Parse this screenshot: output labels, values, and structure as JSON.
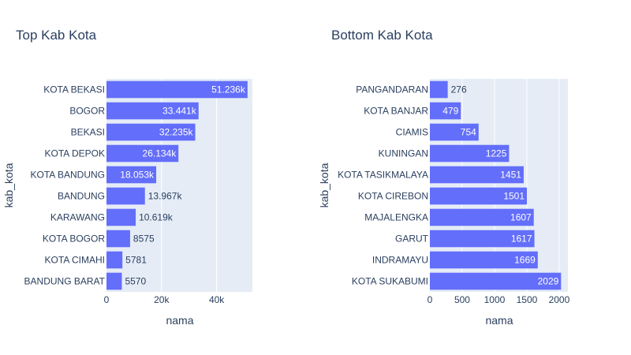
{
  "chart_data": [
    {
      "type": "bar",
      "orientation": "horizontal",
      "title": "Top Kab Kota",
      "xlabel": "nama",
      "ylabel": "kab_kota",
      "xlim": [
        0,
        53000
      ],
      "xticks": [
        0,
        20000,
        40000
      ],
      "xtick_labels": [
        "0",
        "20k",
        "40k"
      ],
      "grid": true,
      "bar_color": "#636efa",
      "plot_bg": "#e5ecf6",
      "categories": [
        "KOTA BEKASI",
        "BOGOR",
        "BEKASI",
        "KOTA DEPOK",
        "KOTA BANDUNG",
        "BANDUNG",
        "KARAWANG",
        "KOTA BOGOR",
        "KOTA CIMAHI",
        "BANDUNG BARAT"
      ],
      "values": [
        51236,
        33441,
        32235,
        26134,
        18053,
        13967,
        10619,
        8575,
        5781,
        5570
      ],
      "value_labels": [
        "51.236k",
        "33.441k",
        "32.235k",
        "26.134k",
        "18.053k",
        "13.967k",
        "10.619k",
        "8575",
        "5781",
        "5570"
      ]
    },
    {
      "type": "bar",
      "orientation": "horizontal",
      "title": "Bottom Kab Kota",
      "xlabel": "nama",
      "ylabel": "kab_kota",
      "xlim": [
        0,
        2135
      ],
      "xticks": [
        0,
        500,
        1000,
        1500,
        2000
      ],
      "xtick_labels": [
        "0",
        "500",
        "1000",
        "1500",
        "2000"
      ],
      "grid": true,
      "bar_color": "#636efa",
      "plot_bg": "#e5ecf6",
      "categories": [
        "PANGANDARAN",
        "KOTA BANJAR",
        "CIAMIS",
        "KUNINGAN",
        "KOTA TASIKMALAYA",
        "KOTA CIREBON",
        "MAJALENGKA",
        "GARUT",
        "INDRAMAYU",
        "KOTA SUKABUMI"
      ],
      "values": [
        276,
        479,
        754,
        1225,
        1451,
        1501,
        1607,
        1617,
        1669,
        2029
      ],
      "value_labels": [
        "276",
        "479",
        "754",
        "1225",
        "1451",
        "1501",
        "1607",
        "1617",
        "1669",
        "2029"
      ]
    }
  ]
}
